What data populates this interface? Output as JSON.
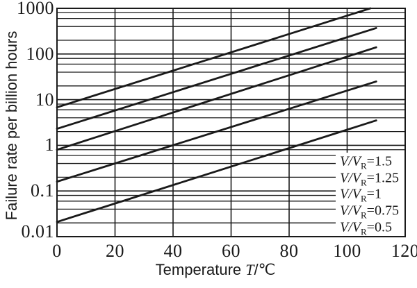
{
  "chart_data": {
    "type": "line",
    "title": "",
    "y_axis": {
      "label": "Failure rate per billion hours",
      "scale": "log",
      "min": 0.01,
      "max": 1000,
      "ticks": [
        1000,
        100,
        10,
        1,
        0.1,
        0.01
      ]
    },
    "x_axis": {
      "label_parts": {
        "prefix": "Temperature ",
        "symbol": "T",
        "suffix": "/℃"
      },
      "scale": "linear",
      "min": 0,
      "max": 120,
      "ticks": [
        0,
        20,
        40,
        60,
        80,
        100,
        120
      ]
    },
    "grid": {
      "vertical_interval_C": 20,
      "horizontal_log_minor_multiples": [
        2,
        4,
        6,
        8
      ],
      "on": true
    },
    "legend": {
      "position": "inside bottom-right",
      "symbol": {
        "numerator": "V",
        "denominator": "V",
        "subscript": "R",
        "equals": "="
      }
    },
    "series": [
      {
        "name": "V/V_R=1.5",
        "ratio": "1.5",
        "points": [
          {
            "T": 0,
            "rate": 6.8
          },
          {
            "T": 108,
            "rate": 1000
          }
        ]
      },
      {
        "name": "V/V_R=1.25",
        "ratio": "1.25",
        "points": [
          {
            "T": 0,
            "rate": 2.3
          },
          {
            "T": 110,
            "rate": 370
          }
        ]
      },
      {
        "name": "V/V_R=1",
        "ratio": "1",
        "points": [
          {
            "T": 0,
            "rate": 0.8
          },
          {
            "T": 110,
            "rate": 140
          }
        ]
      },
      {
        "name": "V/V_R=0.75",
        "ratio": "0.75",
        "points": [
          {
            "T": 0,
            "rate": 0.16
          },
          {
            "T": 110,
            "rate": 25
          }
        ]
      },
      {
        "name": "V/V_R=0.5",
        "ratio": "0.5",
        "points": [
          {
            "T": 0,
            "rate": 0.021
          },
          {
            "T": 110,
            "rate": 3.5
          }
        ]
      }
    ],
    "colors": {
      "line": "#1a1a1a",
      "grid": "#1a1a1a",
      "text": "#1a1a1a",
      "background": "#ffffff"
    }
  }
}
